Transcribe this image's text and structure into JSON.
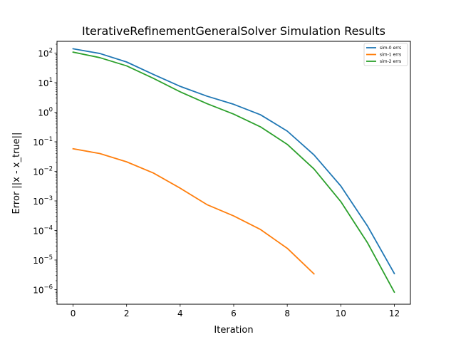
{
  "chart_data": {
    "type": "line",
    "title": "IterativeRefinementGeneralSolver Simulation Results",
    "xlabel": "Iteration",
    "ylabel": "Error ||x - x_true||",
    "xlim": [
      -0.6,
      12.6
    ],
    "ylim": [
      3.2e-07,
      250
    ],
    "yscale": "log",
    "grid": false,
    "legend_position": "top-right",
    "x_ticks": [
      "0",
      "2",
      "4",
      "6",
      "8",
      "10",
      "12"
    ],
    "y_tick_exponents": [
      2,
      1,
      0,
      -1,
      -2,
      -3,
      -4,
      -5,
      -6
    ],
    "series": [
      {
        "name": "sim-0 errs",
        "color": "#1f77b4",
        "x": [
          0,
          1,
          2,
          3,
          4,
          5,
          6,
          7,
          8,
          9,
          10,
          11,
          12
        ],
        "values": [
          140,
          97,
          50,
          19,
          7.5,
          3.5,
          1.85,
          0.82,
          0.23,
          0.036,
          0.0032,
          0.00014,
          3.5e-06
        ]
      },
      {
        "name": "sim-1 errs",
        "color": "#ff7f0e",
        "x": [
          0,
          1,
          2,
          3,
          4,
          5,
          6,
          7,
          8,
          9
        ],
        "values": [
          0.058,
          0.04,
          0.021,
          0.0088,
          0.0027,
          0.00075,
          0.00031,
          0.000108,
          2.5e-05,
          3.4e-06
        ]
      },
      {
        "name": "sim-2 errs",
        "color": "#2ca02c",
        "x": [
          0,
          1,
          2,
          3,
          4,
          5,
          6,
          7,
          8,
          9,
          10,
          11,
          12
        ],
        "values": [
          108,
          70,
          37,
          14,
          4.9,
          1.95,
          0.86,
          0.32,
          0.082,
          0.012,
          0.00095,
          3.8e-05,
          8.2e-07
        ]
      }
    ]
  }
}
